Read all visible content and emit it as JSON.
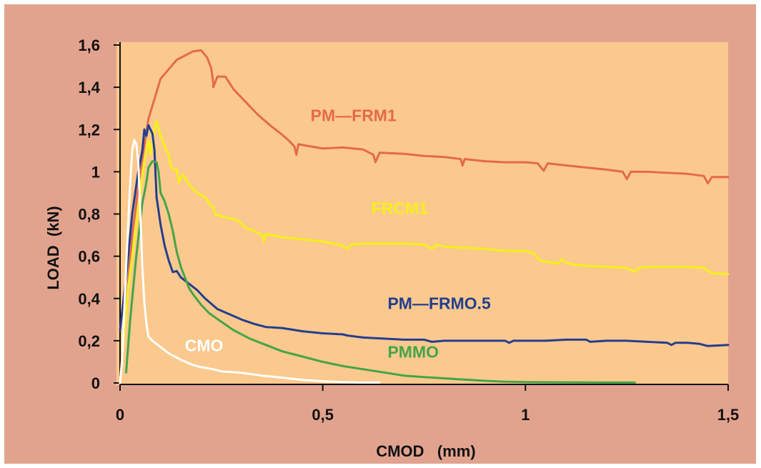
{
  "chart_data": {
    "type": "line",
    "xlabel": "CMOD   (mm)",
    "ylabel": "LOAD  (kN)",
    "xlim": [
      0,
      1.5
    ],
    "ylim": [
      0,
      1.6
    ],
    "x_ticks": [
      0,
      0.5,
      1,
      1.5
    ],
    "x_tick_labels": [
      "0",
      "0,5",
      "1",
      "1,5"
    ],
    "y_ticks": [
      0,
      0.2,
      0.4,
      0.6,
      0.8,
      1.0,
      1.2,
      1.4,
      1.6
    ],
    "y_tick_labels": [
      "0",
      "0,2",
      "0,4",
      "0,6",
      "0,8",
      "1",
      "1,2",
      "1,4",
      "1,6"
    ],
    "grid": false,
    "colors": {
      "frame": "#e2a38e",
      "plot_area": "#fbc98e",
      "axis": "#111111"
    },
    "series": [
      {
        "name": "PM—FRM1",
        "color": "#e46a4b",
        "label_at": [
          0.47,
          1.24
        ],
        "points": [
          [
            0.0,
            0.0
          ],
          [
            0.01,
            0.25
          ],
          [
            0.03,
            0.7
          ],
          [
            0.05,
            1.0
          ],
          [
            0.07,
            1.25
          ],
          [
            0.1,
            1.44
          ],
          [
            0.14,
            1.53
          ],
          [
            0.18,
            1.57
          ],
          [
            0.2,
            1.575
          ],
          [
            0.215,
            1.54
          ],
          [
            0.225,
            1.49
          ],
          [
            0.23,
            1.42
          ],
          [
            0.23,
            1.4
          ],
          [
            0.24,
            1.45
          ],
          [
            0.26,
            1.45
          ],
          [
            0.28,
            1.39
          ],
          [
            0.31,
            1.33
          ],
          [
            0.34,
            1.27
          ],
          [
            0.37,
            1.22
          ],
          [
            0.4,
            1.175
          ],
          [
            0.415,
            1.15
          ],
          [
            0.43,
            1.12
          ],
          [
            0.435,
            1.08
          ],
          [
            0.44,
            1.13
          ],
          [
            0.47,
            1.12
          ],
          [
            0.5,
            1.11
          ],
          [
            0.55,
            1.115
          ],
          [
            0.6,
            1.105
          ],
          [
            0.625,
            1.08
          ],
          [
            0.63,
            1.045
          ],
          [
            0.64,
            1.09
          ],
          [
            0.7,
            1.085
          ],
          [
            0.75,
            1.075
          ],
          [
            0.8,
            1.07
          ],
          [
            0.84,
            1.06
          ],
          [
            0.845,
            1.03
          ],
          [
            0.85,
            1.06
          ],
          [
            0.9,
            1.05
          ],
          [
            0.95,
            1.045
          ],
          [
            1.0,
            1.045
          ],
          [
            1.03,
            1.04
          ],
          [
            1.045,
            1.005
          ],
          [
            1.055,
            1.04
          ],
          [
            1.1,
            1.03
          ],
          [
            1.15,
            1.02
          ],
          [
            1.2,
            1.01
          ],
          [
            1.24,
            1.0
          ],
          [
            1.25,
            0.965
          ],
          [
            1.26,
            1.0
          ],
          [
            1.3,
            1.0
          ],
          [
            1.35,
            0.995
          ],
          [
            1.4,
            0.99
          ],
          [
            1.44,
            0.98
          ],
          [
            1.45,
            0.945
          ],
          [
            1.46,
            0.975
          ],
          [
            1.5,
            0.975
          ]
        ]
      },
      {
        "name": "FRCM1",
        "color": "#f5f01a",
        "label_at": [
          0.62,
          0.8
        ],
        "points": [
          [
            0.0,
            0.0
          ],
          [
            0.02,
            0.45
          ],
          [
            0.04,
            0.75
          ],
          [
            0.06,
            1.05
          ],
          [
            0.07,
            1.15
          ],
          [
            0.075,
            1.08
          ],
          [
            0.085,
            1.2
          ],
          [
            0.09,
            1.24
          ],
          [
            0.1,
            1.17
          ],
          [
            0.11,
            1.12
          ],
          [
            0.12,
            1.08
          ],
          [
            0.125,
            1.03
          ],
          [
            0.13,
            1.01
          ],
          [
            0.14,
            1.01
          ],
          [
            0.145,
            0.95
          ],
          [
            0.155,
            0.985
          ],
          [
            0.17,
            0.94
          ],
          [
            0.19,
            0.9
          ],
          [
            0.21,
            0.88
          ],
          [
            0.22,
            0.85
          ],
          [
            0.23,
            0.83
          ],
          [
            0.235,
            0.8
          ],
          [
            0.24,
            0.795
          ],
          [
            0.27,
            0.78
          ],
          [
            0.29,
            0.77
          ],
          [
            0.31,
            0.735
          ],
          [
            0.33,
            0.72
          ],
          [
            0.35,
            0.7
          ],
          [
            0.355,
            0.67
          ],
          [
            0.36,
            0.705
          ],
          [
            0.4,
            0.69
          ],
          [
            0.45,
            0.68
          ],
          [
            0.5,
            0.67
          ],
          [
            0.55,
            0.65
          ],
          [
            0.56,
            0.635
          ],
          [
            0.57,
            0.655
          ],
          [
            0.6,
            0.66
          ],
          [
            0.65,
            0.66
          ],
          [
            0.7,
            0.66
          ],
          [
            0.75,
            0.655
          ],
          [
            0.77,
            0.635
          ],
          [
            0.78,
            0.655
          ],
          [
            0.8,
            0.645
          ],
          [
            0.85,
            0.64
          ],
          [
            0.9,
            0.635
          ],
          [
            0.95,
            0.625
          ],
          [
            1.0,
            0.625
          ],
          [
            1.02,
            0.615
          ],
          [
            1.035,
            0.58
          ],
          [
            1.05,
            0.575
          ],
          [
            1.08,
            0.565
          ],
          [
            1.09,
            0.585
          ],
          [
            1.1,
            0.57
          ],
          [
            1.12,
            0.56
          ],
          [
            1.15,
            0.555
          ],
          [
            1.2,
            0.55
          ],
          [
            1.25,
            0.545
          ],
          [
            1.27,
            0.525
          ],
          [
            1.28,
            0.545
          ],
          [
            1.3,
            0.55
          ],
          [
            1.35,
            0.55
          ],
          [
            1.4,
            0.55
          ],
          [
            1.44,
            0.545
          ],
          [
            1.46,
            0.52
          ],
          [
            1.5,
            0.515
          ]
        ]
      },
      {
        "name": "PM—FRMO.5",
        "color": "#233e8e",
        "label_at": [
          0.66,
          0.35
        ],
        "points": [
          [
            0.0,
            0.25
          ],
          [
            0.015,
            0.5
          ],
          [
            0.03,
            0.8
          ],
          [
            0.045,
            1.0
          ],
          [
            0.055,
            1.1
          ],
          [
            0.06,
            1.2
          ],
          [
            0.065,
            1.17
          ],
          [
            0.07,
            1.22
          ],
          [
            0.075,
            1.2
          ],
          [
            0.08,
            1.18
          ],
          [
            0.085,
            1.1
          ],
          [
            0.09,
            0.88
          ],
          [
            0.1,
            0.75
          ],
          [
            0.11,
            0.65
          ],
          [
            0.12,
            0.58
          ],
          [
            0.13,
            0.525
          ],
          [
            0.14,
            0.53
          ],
          [
            0.15,
            0.5
          ],
          [
            0.17,
            0.47
          ],
          [
            0.19,
            0.44
          ],
          [
            0.21,
            0.4
          ],
          [
            0.24,
            0.35
          ],
          [
            0.27,
            0.325
          ],
          [
            0.3,
            0.3
          ],
          [
            0.33,
            0.28
          ],
          [
            0.36,
            0.265
          ],
          [
            0.4,
            0.26
          ],
          [
            0.45,
            0.245
          ],
          [
            0.5,
            0.235
          ],
          [
            0.55,
            0.23
          ],
          [
            0.56,
            0.225
          ],
          [
            0.58,
            0.22
          ],
          [
            0.6,
            0.215
          ],
          [
            0.65,
            0.21
          ],
          [
            0.7,
            0.205
          ],
          [
            0.75,
            0.205
          ],
          [
            0.77,
            0.195
          ],
          [
            0.8,
            0.2
          ],
          [
            0.85,
            0.2
          ],
          [
            0.9,
            0.2
          ],
          [
            0.95,
            0.2
          ],
          [
            0.96,
            0.19
          ],
          [
            0.97,
            0.2
          ],
          [
            1.0,
            0.2
          ],
          [
            1.05,
            0.2
          ],
          [
            1.1,
            0.205
          ],
          [
            1.15,
            0.205
          ],
          [
            1.16,
            0.195
          ],
          [
            1.2,
            0.2
          ],
          [
            1.25,
            0.2
          ],
          [
            1.3,
            0.195
          ],
          [
            1.35,
            0.19
          ],
          [
            1.36,
            0.18
          ],
          [
            1.37,
            0.19
          ],
          [
            1.4,
            0.19
          ],
          [
            1.43,
            0.185
          ],
          [
            1.45,
            0.175
          ],
          [
            1.5,
            0.18
          ]
        ]
      },
      {
        "name": "PMMO",
        "color": "#43a448",
        "label_at": [
          0.66,
          0.12
        ],
        "points": [
          [
            0.015,
            0.05
          ],
          [
            0.025,
            0.3
          ],
          [
            0.04,
            0.6
          ],
          [
            0.055,
            0.85
          ],
          [
            0.065,
            0.95
          ],
          [
            0.07,
            1.02
          ],
          [
            0.08,
            1.05
          ],
          [
            0.09,
            1.045
          ],
          [
            0.095,
            1.0
          ],
          [
            0.1,
            0.9
          ],
          [
            0.11,
            0.86
          ],
          [
            0.12,
            0.8
          ],
          [
            0.13,
            0.72
          ],
          [
            0.14,
            0.62
          ],
          [
            0.15,
            0.55
          ],
          [
            0.16,
            0.5
          ],
          [
            0.17,
            0.45
          ],
          [
            0.18,
            0.42
          ],
          [
            0.2,
            0.37
          ],
          [
            0.22,
            0.33
          ],
          [
            0.25,
            0.29
          ],
          [
            0.28,
            0.25
          ],
          [
            0.32,
            0.21
          ],
          [
            0.36,
            0.18
          ],
          [
            0.4,
            0.15
          ],
          [
            0.45,
            0.125
          ],
          [
            0.5,
            0.1
          ],
          [
            0.55,
            0.08
          ],
          [
            0.6,
            0.065
          ],
          [
            0.65,
            0.05
          ],
          [
            0.7,
            0.035
          ],
          [
            0.75,
            0.028
          ],
          [
            0.8,
            0.022
          ],
          [
            0.85,
            0.016
          ],
          [
            0.9,
            0.01
          ],
          [
            0.95,
            0.006
          ],
          [
            1.0,
            0.004
          ],
          [
            1.1,
            0.003
          ],
          [
            1.2,
            0.002
          ],
          [
            1.27,
            0.002
          ]
        ]
      },
      {
        "name": "CMO",
        "color": "#ffffff",
        "label_at": [
          0.16,
          0.15
        ],
        "points": [
          [
            0.0,
            0.0
          ],
          [
            0.005,
            0.1
          ],
          [
            0.015,
            0.55
          ],
          [
            0.025,
            0.95
          ],
          [
            0.03,
            1.1
          ],
          [
            0.035,
            1.15
          ],
          [
            0.04,
            1.13
          ],
          [
            0.045,
            1.05
          ],
          [
            0.05,
            0.8
          ],
          [
            0.055,
            0.55
          ],
          [
            0.06,
            0.38
          ],
          [
            0.065,
            0.28
          ],
          [
            0.07,
            0.22
          ],
          [
            0.08,
            0.2
          ],
          [
            0.1,
            0.17
          ],
          [
            0.12,
            0.14
          ],
          [
            0.15,
            0.11
          ],
          [
            0.18,
            0.085
          ],
          [
            0.2,
            0.075
          ],
          [
            0.23,
            0.065
          ],
          [
            0.25,
            0.055
          ],
          [
            0.3,
            0.048
          ],
          [
            0.35,
            0.035
          ],
          [
            0.4,
            0.025
          ],
          [
            0.45,
            0.015
          ],
          [
            0.5,
            0.008
          ],
          [
            0.55,
            0.004
          ],
          [
            0.6,
            0.002
          ],
          [
            0.64,
            0.002
          ]
        ]
      }
    ]
  }
}
